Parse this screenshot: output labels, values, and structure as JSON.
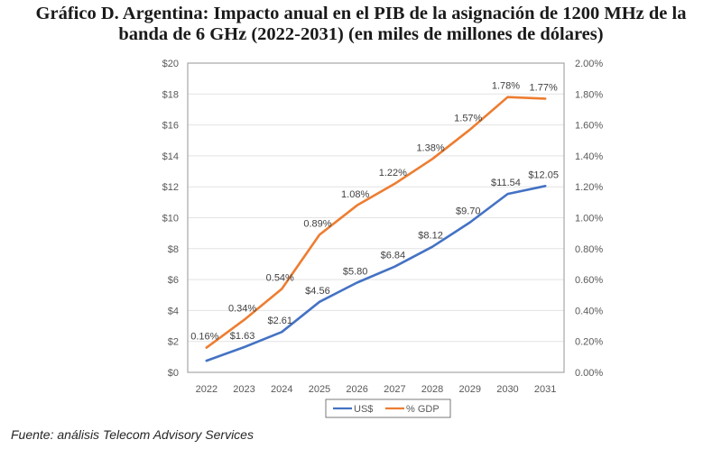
{
  "title_line1": "Gráfico D. Argentina: Impacto anual en el PIB de la asignación de 1200 MHz de la",
  "title_line2": "banda de 6 GHz (2022-2031) (en miles de millones de dólares)",
  "source": "Fuente: análisis Telecom Advisory Services",
  "chart_data": {
    "type": "line",
    "title": "Gráfico D. Argentina: Impacto anual en el PIB de la asignación de 1200 MHz de la banda de 6 GHz (2022-2031) (en miles de millones de dólares)",
    "x": [
      "2022",
      "2023",
      "2024",
      "2025",
      "2026",
      "2027",
      "2028",
      "2029",
      "2030",
      "2031"
    ],
    "series": [
      {
        "name": "US$",
        "axis": "left",
        "color": "#4472c4",
        "values": [
          0.75,
          1.63,
          2.61,
          4.56,
          5.8,
          6.84,
          8.12,
          9.7,
          11.54,
          12.05
        ],
        "labels": [
          "",
          "$1.63",
          "$2.61",
          "$4.56",
          "$5.80",
          "$6.84",
          "$8.12",
          "$9.70",
          "$11.54",
          "$12.05"
        ]
      },
      {
        "name": "% GDP",
        "axis": "right",
        "color": "#ed7d31",
        "values": [
          0.16,
          0.34,
          0.54,
          0.89,
          1.08,
          1.22,
          1.38,
          1.57,
          1.78,
          1.77
        ],
        "labels": [
          "0.16%",
          "0.34%",
          "0.54%",
          "0.89%",
          "1.08%",
          "1.22%",
          "1.38%",
          "1.57%",
          "1.78%",
          "1.77%"
        ]
      }
    ],
    "y_left": {
      "range": [
        0,
        20
      ],
      "ticks": [
        0,
        2,
        4,
        6,
        8,
        10,
        12,
        14,
        16,
        18,
        20
      ],
      "tick_labels": [
        "$0",
        "$2",
        "$4",
        "$6",
        "$8",
        "$10",
        "$12",
        "$14",
        "$16",
        "$18",
        "$20"
      ]
    },
    "y_right": {
      "range": [
        0,
        2.0
      ],
      "ticks": [
        0,
        0.2,
        0.4,
        0.6,
        0.8,
        1.0,
        1.2,
        1.4,
        1.6,
        1.8,
        2.0
      ],
      "tick_labels": [
        "0.00%",
        "0.20%",
        "0.40%",
        "0.60%",
        "0.80%",
        "1.00%",
        "1.20%",
        "1.40%",
        "1.60%",
        "1.80%",
        "2.00%"
      ]
    },
    "xlabel": "",
    "ylabel": "",
    "grid": true,
    "legend": {
      "position": "bottom",
      "entries": [
        "US$",
        "% GDP"
      ]
    }
  }
}
